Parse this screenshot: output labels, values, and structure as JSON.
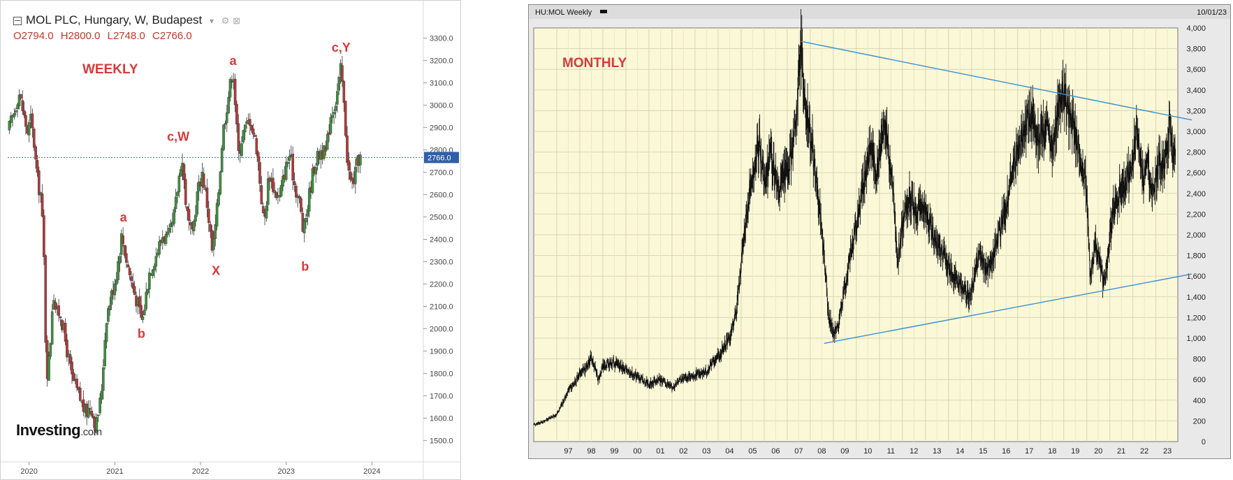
{
  "chart_data": [
    {
      "type": "candlestick",
      "title": "MOL PLC, Hungary, W, Budapest",
      "ohlc_label": {
        "open": "O2794.0",
        "high": "H2800.0",
        "low": "L2748.0",
        "close": "C2766.0"
      },
      "annotation_main": "WEEKLY",
      "last_price_label": "2766.0",
      "last_price": 2766,
      "ylim": [
        1420,
        3380
      ],
      "y_ticks": [
        "1500.0",
        "1600.0",
        "1700.0",
        "1800.0",
        "1900.0",
        "2000.0",
        "2100.0",
        "2200.0",
        "2300.0",
        "2400.0",
        "2500.0",
        "2600.0",
        "2700.0",
        "2800.0",
        "2900.0",
        "3000.0",
        "3100.0",
        "3200.0",
        "3300.0"
      ],
      "x_ticks": [
        "2020",
        "2021",
        "2022",
        "2023",
        "2024"
      ],
      "xlim": [
        2019.75,
        2024.6
      ],
      "wave_labels": [
        {
          "text": "a",
          "t": 2021.1,
          "y": 2480
        },
        {
          "text": "b",
          "t": 2021.31,
          "y": 1960
        },
        {
          "text": "c,W",
          "t": 2021.74,
          "y": 2840
        },
        {
          "text": "X",
          "t": 2022.18,
          "y": 2240
        },
        {
          "text": "a",
          "t": 2022.38,
          "y": 3180
        },
        {
          "text": "b",
          "t": 2023.22,
          "y": 2260
        },
        {
          "text": "c,Y",
          "t": 2023.64,
          "y": 3240
        }
      ],
      "price_path": [
        [
          2019.75,
          2880
        ],
        [
          2019.82,
          2960
        ],
        [
          2019.88,
          3060
        ],
        [
          2019.94,
          2950
        ],
        [
          2019.98,
          2880
        ],
        [
          2020.02,
          2940
        ],
        [
          2020.06,
          2820
        ],
        [
          2020.1,
          2650
        ],
        [
          2020.14,
          2600
        ],
        [
          2020.18,
          2250
        ],
        [
          2020.2,
          1780
        ],
        [
          2020.24,
          1880
        ],
        [
          2020.28,
          2180
        ],
        [
          2020.32,
          2060
        ],
        [
          2020.36,
          2080
        ],
        [
          2020.42,
          1950
        ],
        [
          2020.5,
          1780
        ],
        [
          2020.58,
          1700
        ],
        [
          2020.66,
          1620
        ],
        [
          2020.72,
          1660
        ],
        [
          2020.78,
          1560
        ],
        [
          2020.84,
          1700
        ],
        [
          2020.9,
          2050
        ],
        [
          2020.96,
          2150
        ],
        [
          2021.02,
          2250
        ],
        [
          2021.08,
          2420
        ],
        [
          2021.14,
          2300
        ],
        [
          2021.2,
          2200
        ],
        [
          2021.26,
          2120
        ],
        [
          2021.32,
          2030
        ],
        [
          2021.4,
          2250
        ],
        [
          2021.48,
          2330
        ],
        [
          2021.56,
          2420
        ],
        [
          2021.62,
          2400
        ],
        [
          2021.68,
          2470
        ],
        [
          2021.74,
          2650
        ],
        [
          2021.78,
          2780
        ],
        [
          2021.84,
          2520
        ],
        [
          2021.9,
          2400
        ],
        [
          2021.96,
          2600
        ],
        [
          2022.02,
          2700
        ],
        [
          2022.08,
          2550
        ],
        [
          2022.14,
          2330
        ],
        [
          2022.2,
          2560
        ],
        [
          2022.26,
          2880
        ],
        [
          2022.32,
          3030
        ],
        [
          2022.38,
          3170
        ],
        [
          2022.44,
          2780
        ],
        [
          2022.5,
          2880
        ],
        [
          2022.58,
          2940
        ],
        [
          2022.66,
          2800
        ],
        [
          2022.74,
          2460
        ],
        [
          2022.8,
          2700
        ],
        [
          2022.86,
          2620
        ],
        [
          2022.92,
          2580
        ],
        [
          2022.98,
          2700
        ],
        [
          2023.04,
          2780
        ],
        [
          2023.1,
          2640
        ],
        [
          2023.16,
          2560
        ],
        [
          2023.2,
          2420
        ],
        [
          2023.26,
          2580
        ],
        [
          2023.32,
          2720
        ],
        [
          2023.4,
          2800
        ],
        [
          2023.46,
          2780
        ],
        [
          2023.52,
          2960
        ],
        [
          2023.58,
          3020
        ],
        [
          2023.64,
          3170
        ],
        [
          2023.68,
          2960
        ],
        [
          2023.72,
          2720
        ],
        [
          2023.76,
          2640
        ],
        [
          2023.8,
          2680
        ],
        [
          2023.84,
          2760
        ],
        [
          2023.88,
          2766
        ]
      ],
      "logo": "Investing",
      "logo_suffix": ".com"
    },
    {
      "type": "line",
      "title": "HU:MOL Weekly",
      "date_label": "10/01/23",
      "annotation_main": "MONTHLY",
      "ylim": [
        0,
        4000
      ],
      "y_ticks": [
        "0",
        "200",
        "400",
        "600",
        "800",
        "1,000",
        "1,200",
        "1,400",
        "1,600",
        "1,800",
        "2,000",
        "2,200",
        "2,400",
        "2,600",
        "2,800",
        "3,000",
        "3,200",
        "3,400",
        "3,600",
        "3,800",
        "4,000"
      ],
      "x_ticks": [
        "97",
        "98",
        "99",
        "00",
        "01",
        "02",
        "03",
        "04",
        "05",
        "06",
        "07",
        "08",
        "09",
        "10",
        "11",
        "12",
        "13",
        "14",
        "15",
        "16",
        "17",
        "18",
        "19",
        "20",
        "21",
        "22",
        "23"
      ],
      "xlim": [
        1996.0,
        2023.95
      ],
      "price_path": [
        [
          1996.0,
          160
        ],
        [
          1996.5,
          200
        ],
        [
          1997.0,
          260
        ],
        [
          1997.5,
          480
        ],
        [
          1998.0,
          650
        ],
        [
          1998.3,
          720
        ],
        [
          1998.5,
          820
        ],
        [
          1998.8,
          600
        ],
        [
          1999.0,
          740
        ],
        [
          1999.5,
          760
        ],
        [
          2000.0,
          700
        ],
        [
          2000.5,
          620
        ],
        [
          2001.0,
          560
        ],
        [
          2001.5,
          600
        ],
        [
          2002.0,
          520
        ],
        [
          2002.5,
          620
        ],
        [
          2003.0,
          640
        ],
        [
          2003.5,
          680
        ],
        [
          2004.0,
          820
        ],
        [
          2004.5,
          1000
        ],
        [
          2004.8,
          1300
        ],
        [
          2005.0,
          1700
        ],
        [
          2005.3,
          2300
        ],
        [
          2005.5,
          2600
        ],
        [
          2005.8,
          2900
        ],
        [
          2006.0,
          2500
        ],
        [
          2006.3,
          2800
        ],
        [
          2006.6,
          2400
        ],
        [
          2007.0,
          2600
        ],
        [
          2007.3,
          2900
        ],
        [
          2007.5,
          3500
        ],
        [
          2007.6,
          3850
        ],
        [
          2007.8,
          3200
        ],
        [
          2008.0,
          3000
        ],
        [
          2008.3,
          2500
        ],
        [
          2008.6,
          1800
        ],
        [
          2008.8,
          1200
        ],
        [
          2009.0,
          1050
        ],
        [
          2009.2,
          1100
        ],
        [
          2009.5,
          1500
        ],
        [
          2009.8,
          1900
        ],
        [
          2010.0,
          2100
        ],
        [
          2010.3,
          2500
        ],
        [
          2010.6,
          2800
        ],
        [
          2010.9,
          2600
        ],
        [
          2011.2,
          3100
        ],
        [
          2011.4,
          2800
        ],
        [
          2011.6,
          2400
        ],
        [
          2011.8,
          1750
        ],
        [
          2012.0,
          2100
        ],
        [
          2012.3,
          2400
        ],
        [
          2012.6,
          2200
        ],
        [
          2012.9,
          2300
        ],
        [
          2013.2,
          2100
        ],
        [
          2013.5,
          1900
        ],
        [
          2013.8,
          1800
        ],
        [
          2014.2,
          1600
        ],
        [
          2014.5,
          1500
        ],
        [
          2014.8,
          1400
        ],
        [
          2015.0,
          1450
        ],
        [
          2015.3,
          1800
        ],
        [
          2015.6,
          1650
        ],
        [
          2015.9,
          1750
        ],
        [
          2016.2,
          2000
        ],
        [
          2016.5,
          2300
        ],
        [
          2016.8,
          2600
        ],
        [
          2017.0,
          2800
        ],
        [
          2017.3,
          3000
        ],
        [
          2017.6,
          3200
        ],
        [
          2017.9,
          2900
        ],
        [
          2018.2,
          3100
        ],
        [
          2018.5,
          2800
        ],
        [
          2018.8,
          3300
        ],
        [
          2019.0,
          3400
        ],
        [
          2019.2,
          3200
        ],
        [
          2019.5,
          3000
        ],
        [
          2019.8,
          2700
        ],
        [
          2020.0,
          2400
        ],
        [
          2020.15,
          1600
        ],
        [
          2020.4,
          1900
        ],
        [
          2020.7,
          1550
        ],
        [
          2020.9,
          1700
        ],
        [
          2021.1,
          2200
        ],
        [
          2021.4,
          2400
        ],
        [
          2021.7,
          2500
        ],
        [
          2022.0,
          2700
        ],
        [
          2022.2,
          3100
        ],
        [
          2022.4,
          2500
        ],
        [
          2022.6,
          2700
        ],
        [
          2022.9,
          2400
        ],
        [
          2023.1,
          2700
        ],
        [
          2023.3,
          2650
        ],
        [
          2023.5,
          2900
        ],
        [
          2023.6,
          3150
        ],
        [
          2023.75,
          2700
        ],
        [
          2023.85,
          2766
        ]
      ],
      "trendlines": [
        {
          "from": [
            2007.6,
            3870
          ],
          "to": [
            2023.95,
            3110
          ]
        },
        {
          "from": [
            2008.6,
            950
          ],
          "to": [
            2023.95,
            1620
          ]
        }
      ]
    }
  ]
}
